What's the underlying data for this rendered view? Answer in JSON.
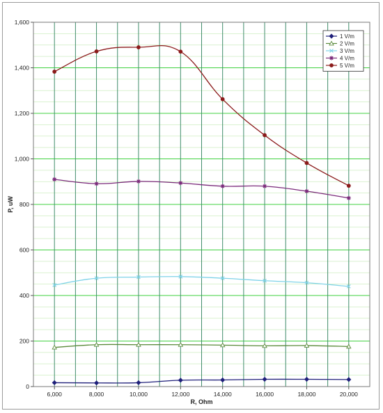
{
  "chart_data": {
    "type": "line",
    "title": "",
    "xlabel": "R, Ohm",
    "ylabel": "P, uW",
    "xlim": [
      5000,
      21000
    ],
    "ylim": [
      0,
      1600
    ],
    "x_ticks": [
      6000,
      8000,
      10000,
      12000,
      14000,
      16000,
      18000,
      20000
    ],
    "y_ticks": [
      0,
      200,
      400,
      600,
      800,
      1000,
      1200,
      1400,
      1600
    ],
    "x_tick_labels": [
      "6,000",
      "8,000",
      "10,000",
      "12,000",
      "14,000",
      "16,000",
      "18,000",
      "20,000"
    ],
    "y_tick_labels": [
      "0",
      "200",
      "400",
      "600",
      "800",
      "1,000",
      "1,200",
      "1,400",
      "1,600"
    ],
    "grid": true,
    "legend_position": "top-right",
    "x": [
      6000,
      8000,
      10000,
      12000,
      14000,
      16000,
      18000,
      20000
    ],
    "series": [
      {
        "name": "1 V/m",
        "color": "#1f1f7a",
        "marker": "diamond",
        "values": [
          17,
          16,
          17,
          28,
          29,
          32,
          32,
          31
        ]
      },
      {
        "name": "2 V/m",
        "color": "#5a8a3a",
        "marker": "triangle",
        "values": [
          172,
          184,
          184,
          184,
          182,
          179,
          180,
          176
        ]
      },
      {
        "name": "3 V/m",
        "color": "#7fd3e8",
        "marker": "cross",
        "values": [
          446,
          476,
          481,
          483,
          476,
          465,
          456,
          440
        ]
      },
      {
        "name": "4 V/m",
        "color": "#7a2a7a",
        "marker": "star",
        "values": [
          910,
          891,
          901,
          894,
          880,
          880,
          858,
          828
        ]
      },
      {
        "name": "5 V/m",
        "color": "#8b1a1a",
        "marker": "circle",
        "values": [
          1383,
          1472,
          1490,
          1471,
          1262,
          1104,
          982,
          882
        ]
      }
    ]
  }
}
